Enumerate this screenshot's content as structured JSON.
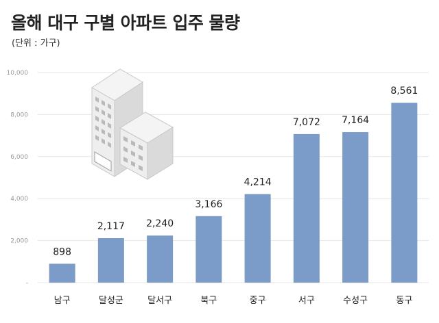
{
  "header": {
    "title": "올해 대구 구별 아파트 입주 물량",
    "unit": "(단위 : 가구)"
  },
  "chart_data": {
    "type": "bar",
    "categories": [
      "남구",
      "달성군",
      "달서구",
      "북구",
      "중구",
      "서구",
      "수성구",
      "동구"
    ],
    "values": [
      898,
      2117,
      2240,
      3166,
      4214,
      7072,
      7164,
      8561
    ],
    "value_labels": [
      "898",
      "2,117",
      "2,240",
      "3,166",
      "4,214",
      "7,072",
      "7,164",
      "8,561"
    ],
    "ylim": [
      0,
      10000
    ],
    "yticks": [
      0,
      2000,
      4000,
      6000,
      8000,
      10000
    ],
    "ytick_labels": [
      "-",
      "2,000",
      "4,000",
      "6,000",
      "8,000",
      "10,000"
    ],
    "grid": true,
    "bar_color": "#7b9bc8",
    "grid_color": "#e6e6e6"
  },
  "illustration": {
    "icon": "apartment-buildings-icon"
  }
}
